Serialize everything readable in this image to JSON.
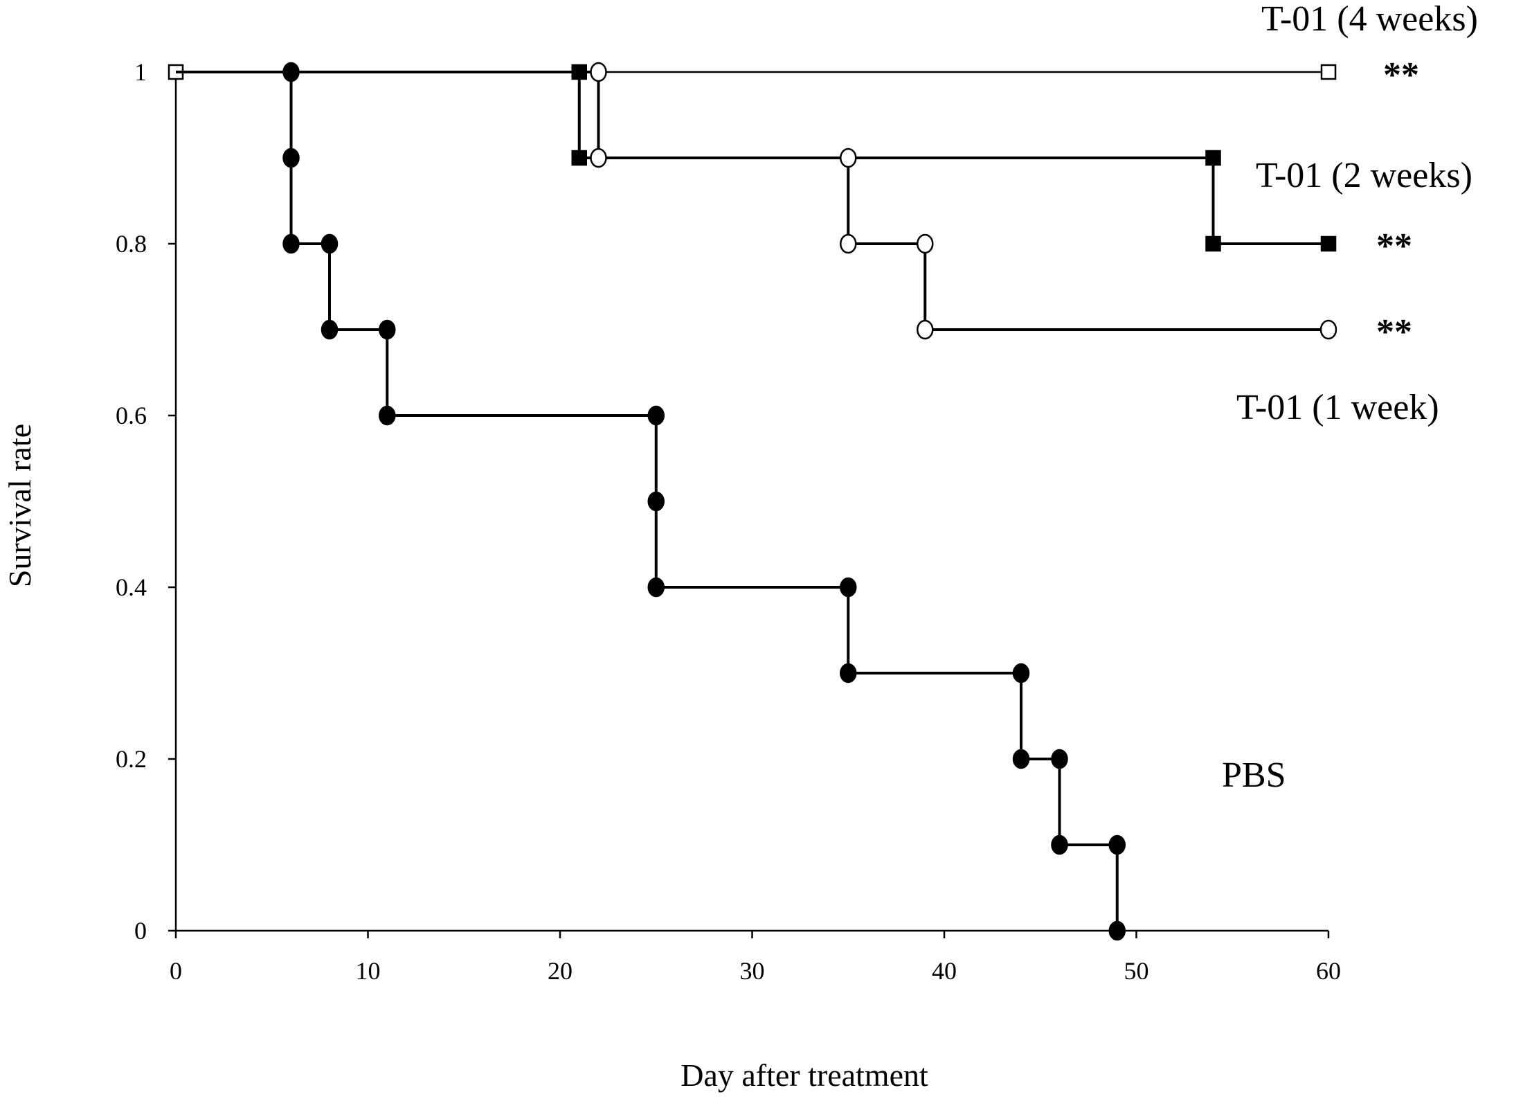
{
  "chart_data": {
    "type": "line",
    "subtype": "kaplan-meier step",
    "title": "",
    "xlabel": "Day after treatment",
    "ylabel": "Survival rate",
    "xlim": [
      0,
      60
    ],
    "ylim": [
      0,
      1
    ],
    "x_ticks": [
      "0",
      "10",
      "20",
      "30",
      "40",
      "50",
      "60"
    ],
    "y_ticks": [
      "0",
      "0.2",
      "0.4",
      "0.6",
      "0.8",
      "1"
    ],
    "grid": false,
    "series": [
      {
        "name": "PBS",
        "marker": "filled-circle",
        "points": [
          [
            0,
            1
          ],
          [
            6,
            1
          ],
          [
            6,
            0.9
          ],
          [
            6,
            0.8
          ],
          [
            8,
            0.8
          ],
          [
            8,
            0.7
          ],
          [
            11,
            0.7
          ],
          [
            11,
            0.6
          ],
          [
            25,
            0.6
          ],
          [
            25,
            0.5
          ],
          [
            25,
            0.4
          ],
          [
            35,
            0.4
          ],
          [
            35,
            0.3
          ],
          [
            44,
            0.3
          ],
          [
            44,
            0.2
          ],
          [
            46,
            0.2
          ],
          [
            46,
            0.1
          ],
          [
            49,
            0.1
          ],
          [
            49,
            0
          ]
        ]
      },
      {
        "name": "T-01 (4 weeks)",
        "marker": "open-square",
        "significance": "**",
        "points": [
          [
            0,
            1
          ],
          [
            60,
            1
          ]
        ]
      },
      {
        "name": "T-01 (2 weeks)",
        "marker": "filled-square",
        "significance": "**",
        "points": [
          [
            0,
            1
          ],
          [
            21,
            1
          ],
          [
            21,
            0.9
          ],
          [
            54,
            0.9
          ],
          [
            54,
            0.8
          ],
          [
            60,
            0.8
          ]
        ]
      },
      {
        "name": "T-01 (1 week)",
        "marker": "open-circle",
        "significance": "**",
        "points": [
          [
            0,
            1
          ],
          [
            22,
            1
          ],
          [
            22,
            0.9
          ],
          [
            35,
            0.9
          ],
          [
            35,
            0.8
          ],
          [
            39,
            0.8
          ],
          [
            39,
            0.7
          ],
          [
            60,
            0.7
          ]
        ]
      }
    ],
    "colors": {
      "line": "#000000",
      "background": "#ffffff"
    }
  }
}
